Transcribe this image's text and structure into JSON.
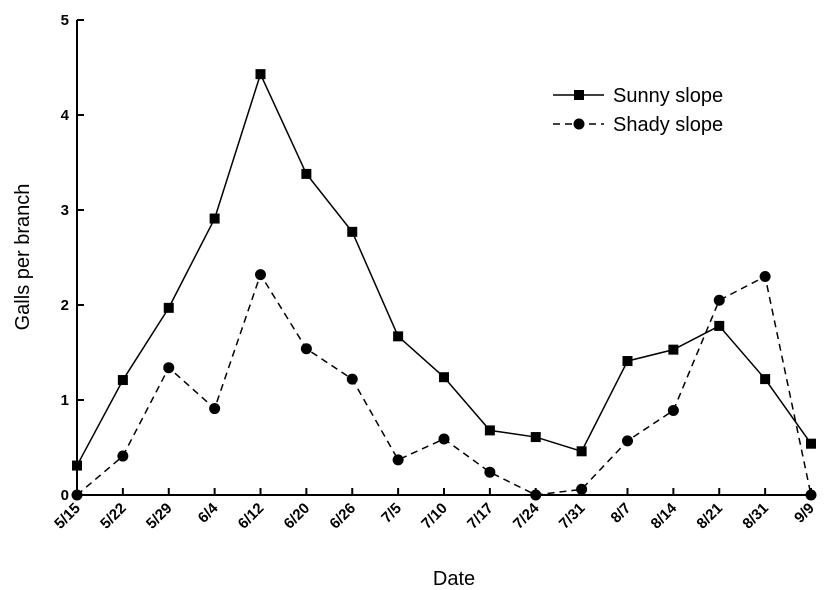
{
  "chart_data": {
    "type": "line",
    "xlabel": "Date",
    "ylabel": "Galls per branch",
    "ylim": [
      0,
      5
    ],
    "yticks": [
      "0",
      "1",
      "2",
      "3",
      "4",
      "5"
    ],
    "categories": [
      "5/15",
      "5/22",
      "5/29",
      "6/4",
      "6/12",
      "6/20",
      "6/26",
      "7/5",
      "7/10",
      "7/17",
      "7/24",
      "7/31",
      "8/7",
      "8/14",
      "8/21",
      "8/31",
      "9/9"
    ],
    "legend_position": "top-right",
    "grid": false,
    "series": [
      {
        "name": "Sunny slope",
        "marker": "square",
        "line_style": "solid",
        "color": "#000000",
        "values": [
          0.31,
          1.21,
          1.97,
          2.91,
          4.43,
          3.38,
          2.77,
          1.67,
          1.24,
          0.68,
          0.61,
          0.46,
          1.41,
          1.53,
          1.78,
          1.22,
          0.54
        ]
      },
      {
        "name": "Shady slope",
        "marker": "circle",
        "line_style": "dashed",
        "color": "#000000",
        "values": [
          0.0,
          0.41,
          1.34,
          0.91,
          2.32,
          1.54,
          1.22,
          0.37,
          0.59,
          0.24,
          0.0,
          0.06,
          0.57,
          0.89,
          2.05,
          2.3,
          0.0
        ]
      }
    ]
  }
}
